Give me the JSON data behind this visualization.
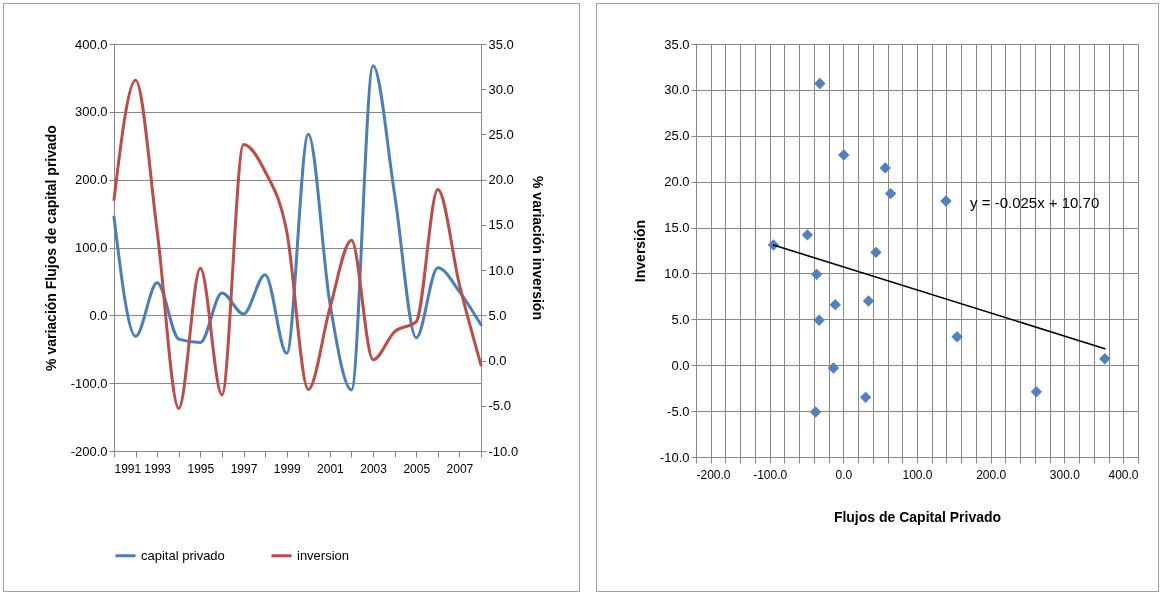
{
  "chart_data": [
    {
      "type": "line",
      "x": [
        1991,
        1992,
        1993,
        1994,
        1995,
        1996,
        1997,
        1998,
        1999,
        2000,
        2001,
        2002,
        2003,
        2004,
        2005,
        2006,
        2007,
        2008
      ],
      "xlim": [
        1991,
        2008
      ],
      "xticks": [
        1991,
        {
          "value": 1992,
          "label": null
        },
        1993,
        {
          "value": 1994,
          "label": null
        },
        1995,
        {
          "value": 1996,
          "label": null
        },
        1997,
        {
          "value": 1998,
          "label": null
        },
        1999,
        {
          "value": 2000,
          "label": null
        },
        2001,
        {
          "value": 2002,
          "label": null
        },
        2003,
        {
          "value": 2004,
          "label": null
        },
        2005,
        {
          "value": 2006,
          "label": null
        },
        2007,
        {
          "value": 2008,
          "label": null
        }
      ],
      "ylim": [
        -200,
        400
      ],
      "yticks": [
        {
          "value": -200,
          "label": "-200.0"
        },
        {
          "value": -100,
          "label": "-100.0"
        },
        {
          "value": 0,
          "label": "0.0"
        },
        {
          "value": 100,
          "label": "100.0"
        },
        {
          "value": 200,
          "label": "200.0"
        },
        {
          "value": 300,
          "label": "300.0"
        },
        {
          "value": 400,
          "label": "400.0"
        }
      ],
      "y2lim": [
        -10,
        35
      ],
      "y2ticks": [
        {
          "value": -10,
          "label": "-10.0"
        },
        {
          "value": -5,
          "label": "-5.0"
        },
        {
          "value": 0,
          "label": "0.0"
        },
        {
          "value": 5,
          "label": "5.0"
        },
        {
          "value": 10,
          "label": "10.0"
        },
        {
          "value": 15,
          "label": "15.0"
        },
        {
          "value": 20,
          "label": "20.0"
        },
        {
          "value": 25,
          "label": "25.0"
        },
        {
          "value": 30,
          "label": "30.0"
        },
        {
          "value": 35,
          "label": "35.0"
        }
      ],
      "ylabel": "% variación  Flujos de capital privado",
      "y2label": "% variación  inversión",
      "grid": "y",
      "legend": "bottom",
      "series": [
        {
          "name": "capital privado",
          "color": "#4a7ebb",
          "values": [
            145,
            -31,
            48,
            -35,
            -40,
            33,
            2,
            60,
            -56,
            267,
            18,
            -110,
            368,
            178,
            -33,
            70,
            35,
            -14
          ]
        },
        {
          "name": "inversion",
          "color": "#be4b48",
          "axis": "y2",
          "values": [
            17.8,
            31.0,
            14.3,
            -5.3,
            10.2,
            -3.8,
            23.9,
            20.9,
            14.3,
            -3.2,
            5.8,
            13.3,
            0.1,
            3.2,
            4.3,
            18.9,
            8.4,
            -0.5
          ]
        }
      ]
    },
    {
      "type": "scatter",
      "xlabel": "Flujos de Capital Privado",
      "ylabel": "Inversión",
      "xlim": [
        -200,
        400
      ],
      "xticks": [
        {
          "value": -200,
          "label": "-200.0"
        },
        {
          "value": -180,
          "label": null
        },
        {
          "value": -160,
          "label": null
        },
        {
          "value": -140,
          "label": null
        },
        {
          "value": -120,
          "label": null
        },
        {
          "value": -100,
          "label": "-100.0"
        },
        {
          "value": -80,
          "label": null
        },
        {
          "value": -60,
          "label": null
        },
        {
          "value": -40,
          "label": null
        },
        {
          "value": -20,
          "label": null
        },
        {
          "value": 0,
          "label": "0.0"
        },
        {
          "value": 20,
          "label": null
        },
        {
          "value": 40,
          "label": null
        },
        {
          "value": 60,
          "label": null
        },
        {
          "value": 80,
          "label": null
        },
        {
          "value": 100,
          "label": "100.0"
        },
        {
          "value": 120,
          "label": null
        },
        {
          "value": 140,
          "label": null
        },
        {
          "value": 160,
          "label": null
        },
        {
          "value": 180,
          "label": null
        },
        {
          "value": 200,
          "label": "200.0"
        },
        {
          "value": 220,
          "label": null
        },
        {
          "value": 240,
          "label": null
        },
        {
          "value": 260,
          "label": null
        },
        {
          "value": 280,
          "label": null
        },
        {
          "value": 300,
          "label": "300.0"
        },
        {
          "value": 320,
          "label": null
        },
        {
          "value": 340,
          "label": null
        },
        {
          "value": 360,
          "label": null
        },
        {
          "value": 380,
          "label": null
        },
        {
          "value": 400,
          "label": "400.0"
        }
      ],
      "ylim": [
        -10,
        35
      ],
      "yticks": [
        {
          "value": -10,
          "label": "-10.0"
        },
        {
          "value": -5,
          "label": "-5.0"
        },
        {
          "value": 0,
          "label": "0.0"
        },
        {
          "value": 5,
          "label": "5.0"
        },
        {
          "value": 10,
          "label": "10.0"
        },
        {
          "value": 15,
          "label": "15.0"
        },
        {
          "value": 20,
          "label": "20.0"
        },
        {
          "value": 25,
          "label": "25.0"
        },
        {
          "value": 30,
          "label": "30.0"
        },
        {
          "value": 35,
          "label": "35.0"
        }
      ],
      "grid": true,
      "annotations": [
        "y = -0.025x + 10.70"
      ],
      "series": [
        {
          "color": "#4f81bd",
          "marker": "diamond",
          "x": [
            -94.9,
            -48.8,
            -31.9,
            -36.2,
            -32.8,
            -37.7,
            -13.4,
            -11.0,
            0.6,
            34.1,
            30.2,
            44.2,
            56.9,
            64.2,
            139.3,
            154.4,
            262,
            355
          ],
          "values": [
            13.1,
            14.2,
            30.7,
            9.9,
            4.9,
            -5.1,
            -0.3,
            6.6,
            22.9,
            7.0,
            -3.5,
            12.3,
            21.5,
            18.7,
            17.9,
            3.1,
            -2.9,
            0.7
          ]
        },
        {
          "type": "line",
          "color": "#000000",
          "x": [
            -94.9,
            355
          ],
          "values": [
            13.1,
            1.8
          ]
        }
      ]
    }
  ]
}
